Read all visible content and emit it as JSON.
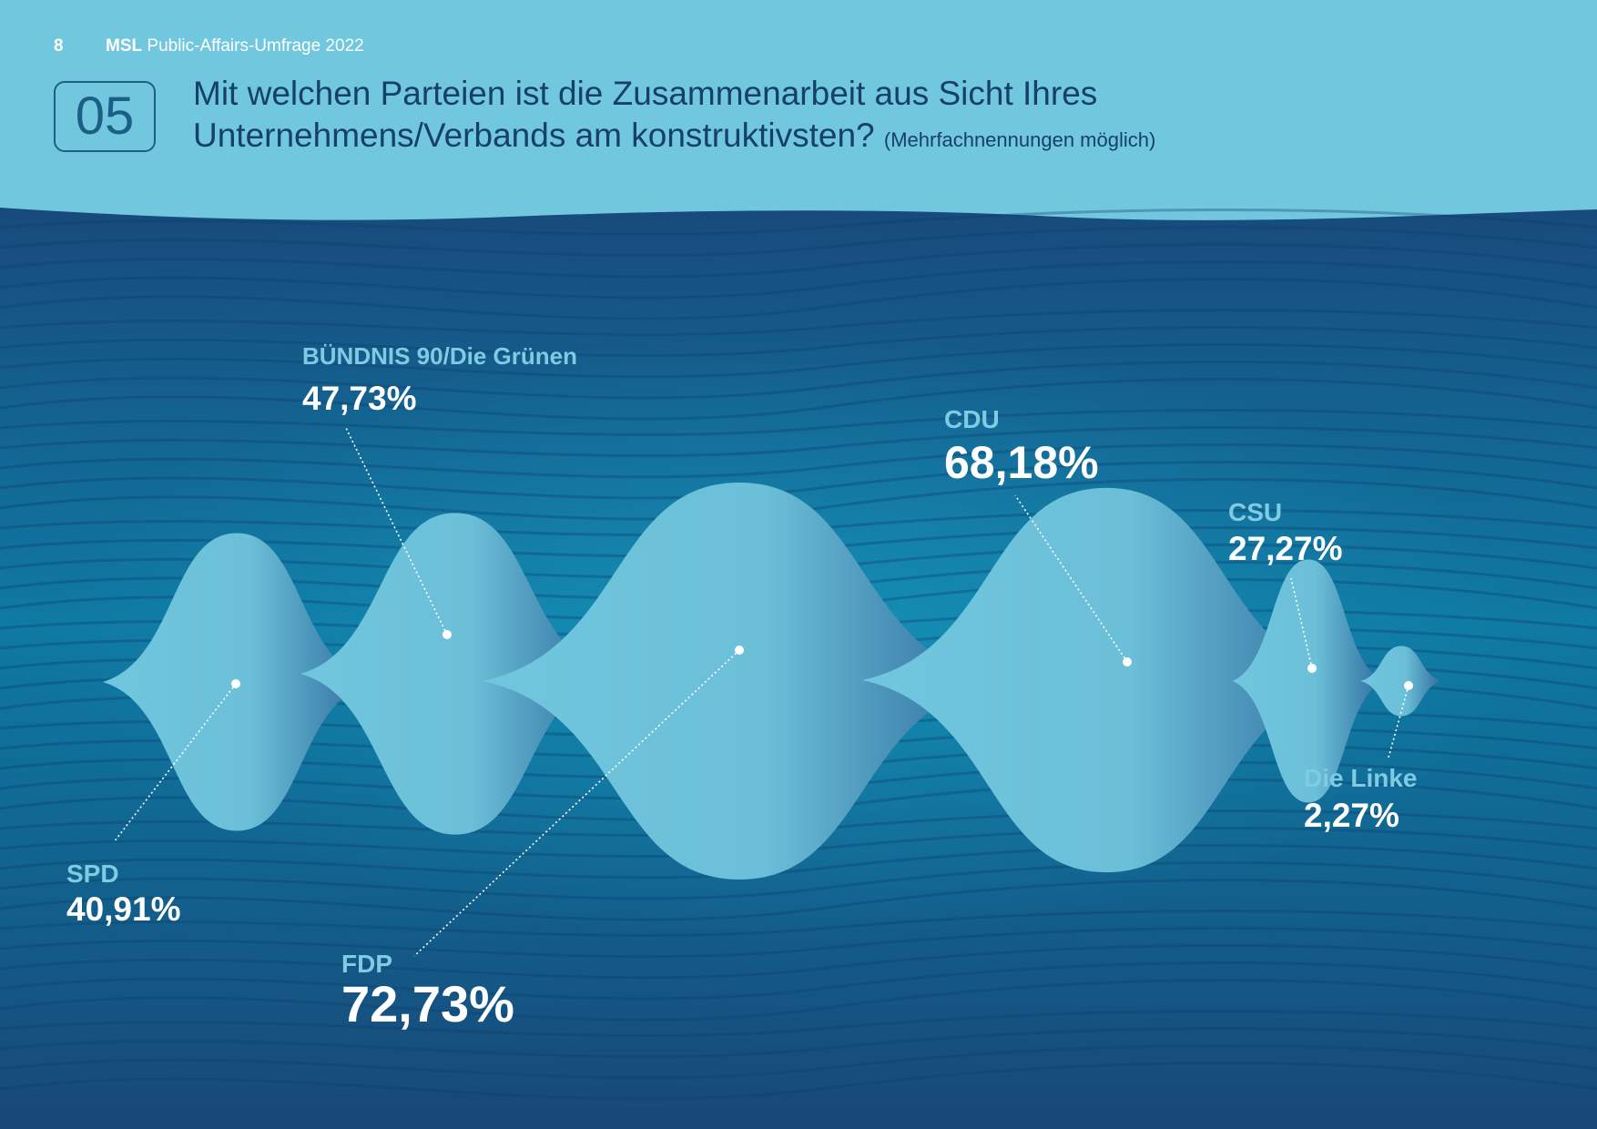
{
  "header": {
    "page_number": "8",
    "brand": "MSL",
    "publication": "Public-Affairs-Umfrage 2022",
    "question_number": "05",
    "question_line1": "Mit welchen Parteien ist die Zusammenarbeit aus Sicht Ihres",
    "question_line2": "Unternehmens/Verbands am konstruktivsten?",
    "question_note": "(Mehrfachnennungen möglich)"
  },
  "colors": {
    "header_bg": "#71c8de",
    "deep_blue": "#184a7c",
    "mid_blue": "#0e6e96",
    "bubble": "#70c7de",
    "label": "#7fcbe3",
    "value": "#ffffff"
  },
  "chart_data": {
    "type": "bubble",
    "categories": [
      "SPD",
      "BÜNDNIS 90/Die Grünen",
      "FDP",
      "CDU",
      "CSU",
      "Die Linke"
    ],
    "values": [
      40.91,
      47.73,
      72.73,
      68.18,
      27.27,
      2.27
    ],
    "value_labels": [
      "40,91%",
      "47,73%",
      "72,73%",
      "68,18%",
      "27,27%",
      "2,27%"
    ],
    "unit": "%"
  }
}
